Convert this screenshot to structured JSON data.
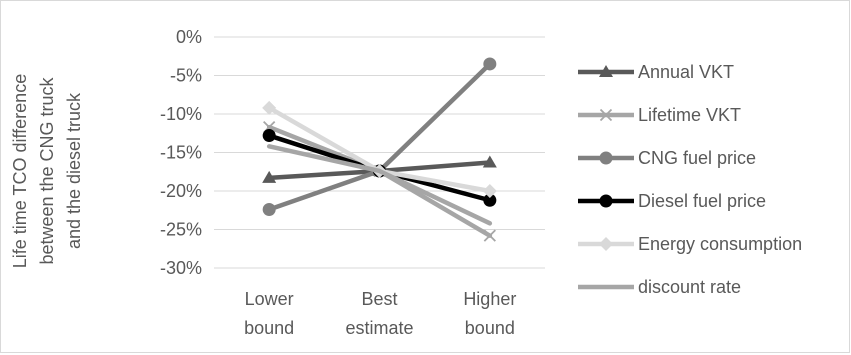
{
  "chart_data": {
    "type": "line",
    "categories": [
      [
        "Lower",
        "bound"
      ],
      [
        "Best",
        "estimate"
      ],
      [
        "Higher",
        "bound"
      ]
    ],
    "ylabel": [
      "Life time TCO difference",
      "between the CNG truck",
      "and the diesel truck"
    ],
    "ylim": [
      -30,
      0
    ],
    "ytick_step": 5,
    "ytick_labels": [
      "0%",
      "-5%",
      "-10%",
      "-15%",
      "-20%",
      "-25%",
      "-30%"
    ],
    "grid": "horizontal",
    "legend_position": "right",
    "series": [
      {
        "name": "Annual VKT",
        "values": [
          -18.3,
          -17.4,
          -16.3
        ],
        "color": "#595959",
        "marker": "triangle"
      },
      {
        "name": "Lifetime VKT",
        "values": [
          -11.7,
          -17.4,
          -25.8
        ],
        "color": "#a6a6a6",
        "marker": "x"
      },
      {
        "name": "CNG fuel price",
        "values": [
          -22.4,
          -17.4,
          -3.5
        ],
        "color": "#808080",
        "marker": "circle"
      },
      {
        "name": "Diesel fuel price",
        "values": [
          -12.8,
          -17.4,
          -21.2
        ],
        "color": "#000000",
        "marker": "circle"
      },
      {
        "name": "Energy consumption",
        "values": [
          -9.2,
          -17.4,
          -20.0
        ],
        "color": "#d9d9d9",
        "marker": "diamond"
      },
      {
        "name": "discount rate",
        "values": [
          -14.2,
          -17.4,
          -24.2
        ],
        "color": "#a6a6a6",
        "marker": "none"
      }
    ]
  }
}
